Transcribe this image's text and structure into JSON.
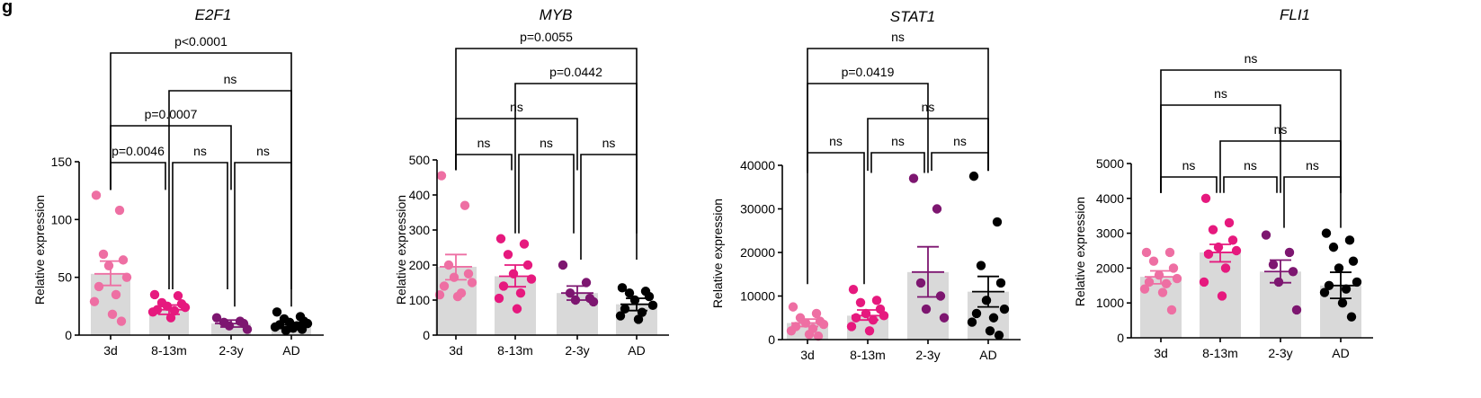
{
  "figure_label": "g",
  "chart_data": [
    {
      "type": "bar",
      "title": "E2F1",
      "ylabel": "Relative expression",
      "categories": [
        "3d",
        "8-13m",
        "2-3y",
        "AD"
      ],
      "colors": [
        "#ee6fa3",
        "#e6197e",
        "#7d1670",
        "#000000"
      ],
      "ylim": [
        0,
        150
      ],
      "yticks": [
        0,
        50,
        100,
        150
      ],
      "bar_values": [
        53,
        22,
        10,
        9
      ],
      "error": [
        [
          43,
          64
        ],
        [
          18,
          26
        ],
        [
          7,
          13
        ],
        [
          7,
          11
        ]
      ],
      "points": [
        [
          121,
          108,
          70,
          65,
          60,
          50,
          42,
          35,
          29,
          18,
          12
        ],
        [
          35,
          34,
          28,
          27,
          25,
          24,
          22,
          21,
          20,
          15
        ],
        [
          15,
          12,
          11,
          10,
          8,
          5
        ],
        [
          20,
          16,
          14,
          12,
          11,
          10,
          9,
          8,
          7,
          6,
          5,
          4
        ]
      ],
      "comparisons": [
        {
          "from": 0,
          "to": 3,
          "label": "p<0.0001"
        },
        {
          "from": 1,
          "to": 3,
          "label": "ns"
        },
        {
          "from": 0,
          "to": 2,
          "label": "p=0.0007"
        },
        {
          "from": 0,
          "to": 1,
          "label": "p=0.0046"
        },
        {
          "from": 1,
          "to": 2,
          "label": "ns"
        },
        {
          "from": 2,
          "to": 3,
          "label": "ns"
        }
      ]
    },
    {
      "type": "bar",
      "title": "MYB",
      "ylabel": "Relative expression",
      "categories": [
        "3d",
        "8-13m",
        "2-3y",
        "AD"
      ],
      "colors": [
        "#ee6fa3",
        "#e6197e",
        "#7d1670",
        "#000000"
      ],
      "ylim": [
        0,
        500
      ],
      "yticks": [
        0,
        100,
        200,
        300,
        400,
        500
      ],
      "bar_values": [
        195,
        168,
        120,
        88
      ],
      "error": [
        [
          158,
          230
        ],
        [
          138,
          200
        ],
        [
          100,
          140
        ],
        [
          70,
          105
        ]
      ],
      "points": [
        [
          455,
          370,
          200,
          175,
          165,
          150,
          140,
          120,
          115,
          110
        ],
        [
          275,
          260,
          230,
          200,
          175,
          160,
          140,
          120,
          105,
          75
        ],
        [
          200,
          150,
          120,
          105,
          100,
          95
        ],
        [
          135,
          125,
          120,
          110,
          100,
          85,
          75,
          65,
          55,
          45
        ]
      ],
      "comparisons": [
        {
          "from": 0,
          "to": 3,
          "label": "p=0.0055"
        },
        {
          "from": 1,
          "to": 3,
          "label": "p=0.0442"
        },
        {
          "from": 0,
          "to": 2,
          "label": "ns"
        },
        {
          "from": 0,
          "to": 1,
          "label": "ns"
        },
        {
          "from": 1,
          "to": 2,
          "label": "ns"
        },
        {
          "from": 2,
          "to": 3,
          "label": "ns"
        }
      ]
    },
    {
      "type": "bar",
      "title": "STAT1",
      "ylabel": "Relative expression",
      "categories": [
        "3d",
        "8-13m",
        "2-3y",
        "AD"
      ],
      "colors": [
        "#ee6fa3",
        "#e6197e",
        "#7d1670",
        "#000000"
      ],
      "ylim": [
        0,
        40000
      ],
      "yticks": [
        0,
        10000,
        20000,
        30000,
        40000
      ],
      "bar_values": [
        3800,
        5500,
        15500,
        11000
      ],
      "error": [
        [
          3000,
          4700
        ],
        [
          4500,
          6800
        ],
        [
          9800,
          21300
        ],
        [
          7500,
          14500
        ]
      ],
      "points": [
        [
          7500,
          6000,
          5000,
          4200,
          3800,
          3500,
          3000,
          2500,
          2000,
          1200,
          800
        ],
        [
          11500,
          9000,
          8500,
          7000,
          6000,
          5500,
          5000,
          4500,
          3000,
          2000
        ],
        [
          37000,
          30000,
          13000,
          10000,
          7000,
          5000
        ],
        [
          37500,
          27000,
          17000,
          13000,
          9000,
          7000,
          6000,
          5000,
          4000,
          2000,
          1000
        ]
      ],
      "comparisons": [
        {
          "from": 0,
          "to": 3,
          "label": "ns"
        },
        {
          "from": 0,
          "to": 2,
          "label": "p=0.0419"
        },
        {
          "from": 1,
          "to": 3,
          "label": "ns"
        },
        {
          "from": 0,
          "to": 1,
          "label": "ns"
        },
        {
          "from": 1,
          "to": 2,
          "label": "ns"
        },
        {
          "from": 2,
          "to": 3,
          "label": "ns"
        }
      ]
    },
    {
      "type": "bar",
      "title": "FLI1",
      "ylabel": "Relative expression",
      "categories": [
        "3d",
        "8-13m",
        "2-3y",
        "AD"
      ],
      "colors": [
        "#ee6fa3",
        "#e6197e",
        "#7d1670",
        "#000000"
      ],
      "ylim": [
        0,
        5000
      ],
      "yticks": [
        0,
        1000,
        2000,
        3000,
        4000,
        5000
      ],
      "bar_values": [
        1750,
        2450,
        1900,
        1500
      ],
      "error": [
        [
          1550,
          1920
        ],
        [
          2180,
          2680
        ],
        [
          1580,
          2230
        ],
        [
          1130,
          1880
        ]
      ],
      "points": [
        [
          2450,
          2450,
          2200,
          2000,
          1800,
          1700,
          1600,
          1550,
          1400,
          1300,
          800
        ],
        [
          4000,
          3300,
          3100,
          2800,
          2600,
          2500,
          2400,
          2000,
          1600,
          1200
        ],
        [
          2950,
          2450,
          2100,
          1900,
          1600,
          800
        ],
        [
          3000,
          2800,
          2600,
          2200,
          2000,
          1600,
          1500,
          1400,
          1300,
          1000,
          600
        ]
      ],
      "comparisons": [
        {
          "from": 0,
          "to": 3,
          "label": "ns"
        },
        {
          "from": 0,
          "to": 2,
          "label": "ns"
        },
        {
          "from": 1,
          "to": 3,
          "label": "ns"
        },
        {
          "from": 0,
          "to": 1,
          "label": "ns"
        },
        {
          "from": 1,
          "to": 2,
          "label": "ns"
        },
        {
          "from": 2,
          "to": 3,
          "label": "ns"
        }
      ]
    }
  ]
}
